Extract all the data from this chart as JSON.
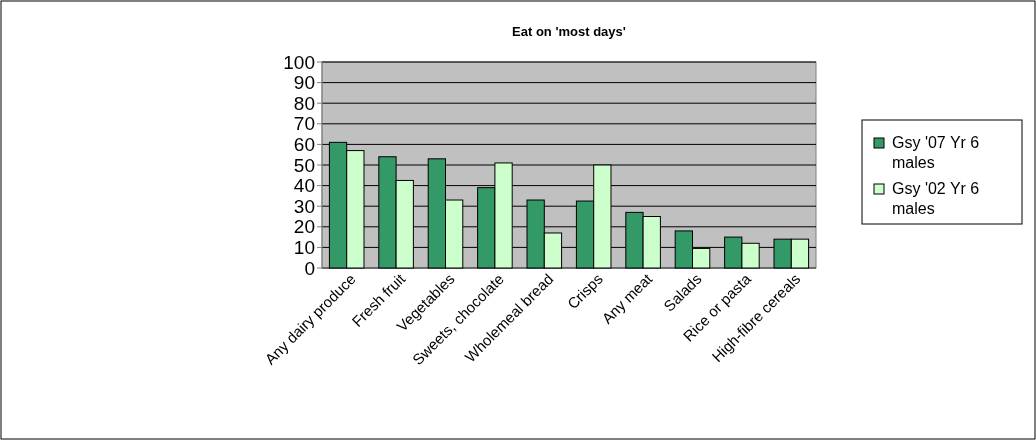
{
  "chart_data": {
    "type": "bar",
    "title": "Eat on 'most days'",
    "categories": [
      "Any dairy produce",
      "Fresh fruit",
      "Vegetables",
      "Sweets, chocolate",
      "Wholemeal bread",
      "Crisps",
      "Any meat",
      "Salads",
      "Rice or pasta",
      "High-fibre cereals"
    ],
    "series": [
      {
        "name": "Gsy '07 Yr 6 males",
        "color": "#339966",
        "values": [
          61,
          54,
          53,
          39,
          33,
          32.5,
          27,
          18,
          15,
          14
        ]
      },
      {
        "name": "Gsy '02 Yr 6 males",
        "color": "#ccffcc",
        "values": [
          57,
          42.5,
          33,
          51,
          17,
          50,
          25,
          9.5,
          12,
          14
        ]
      }
    ],
    "ylim": [
      0,
      100
    ],
    "yticks": [
      0,
      10,
      20,
      30,
      40,
      50,
      60,
      70,
      80,
      90,
      100
    ],
    "grid": "y",
    "legend": "right"
  }
}
